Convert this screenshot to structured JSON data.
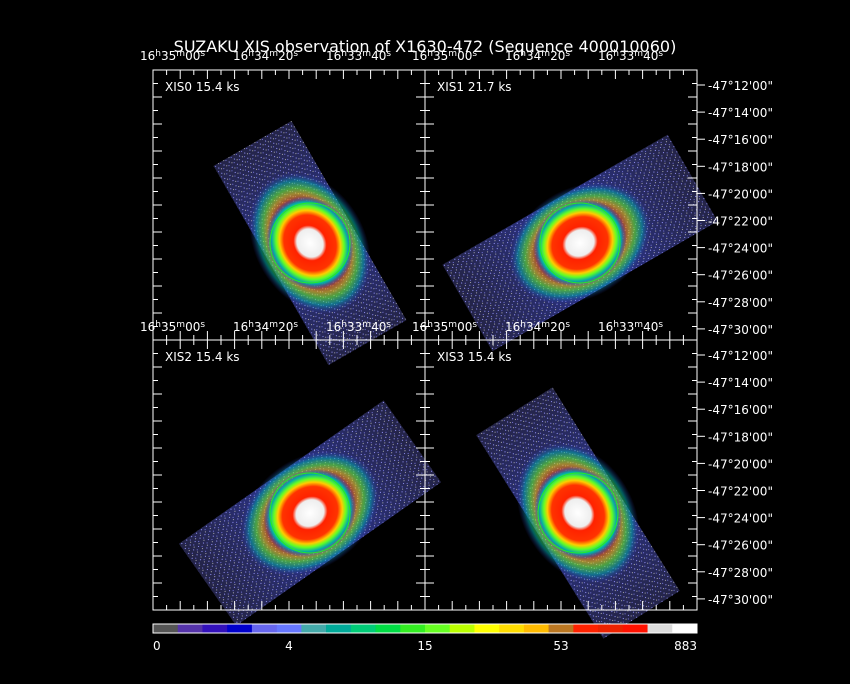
{
  "title": "SUZAKU XIS observation of X1630-472  (Sequence 400010060)",
  "units": {
    "h": "h",
    "m": "m",
    "s": "s"
  },
  "ra_labels": [
    {
      "h": "16",
      "m": "35",
      "s": "00"
    },
    {
      "h": "16",
      "m": "34",
      "s": "20"
    },
    {
      "h": "16",
      "m": "33",
      "s": "40"
    }
  ],
  "dec_labels": [
    "-47°12'00\"",
    "-47°14'00\"",
    "-47°16'00\"",
    "-47°18'00\"",
    "-47°20'00\"",
    "-47°22'00\"",
    "-47°24'00\"",
    "-47°26'00\"",
    "-47°28'00\"",
    "-47°30'00\""
  ],
  "panels": [
    {
      "label": "XIS0 15.4 ks"
    },
    {
      "label": "XIS1 21.7 ks"
    },
    {
      "label": "XIS2 15.4 ks"
    },
    {
      "label": "XIS3 15.4 ks"
    }
  ],
  "colorbar": {
    "labels": [
      "0",
      "4",
      "15",
      "53",
      "883"
    ],
    "colors": [
      "#555555",
      "#5533aa",
      "#3311bb",
      "#0000cc",
      "#6666ee",
      "#6677ff",
      "#44aaaa",
      "#00aa99",
      "#00cc77",
      "#00dd44",
      "#33ee22",
      "#66ff22",
      "#bbff00",
      "#ffff00",
      "#ffdd00",
      "#ffbb00",
      "#bb7722",
      "#ff2200",
      "#ee2200",
      "#ff1100",
      "#dddddd",
      "#ffffff"
    ]
  }
}
